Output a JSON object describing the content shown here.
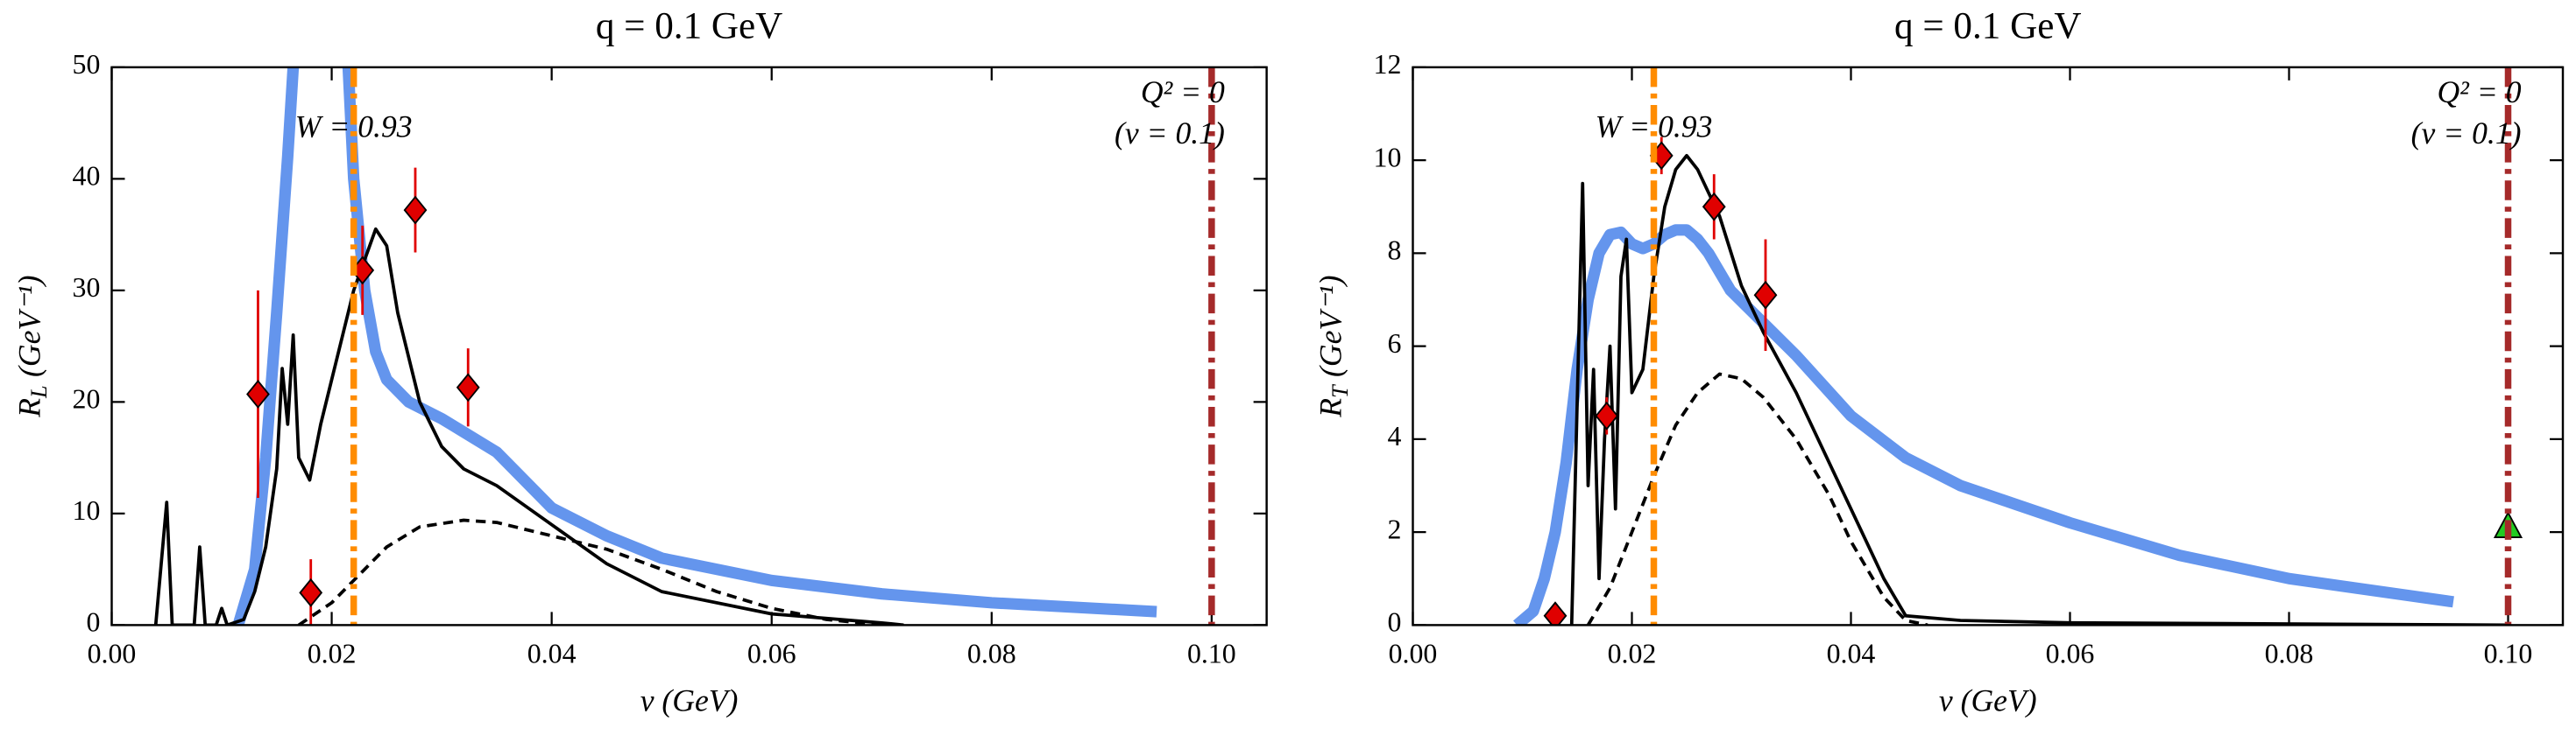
{
  "chart_data": [
    {
      "type": "line",
      "title": "q = 0.1 GeV",
      "xlabel": "ν (GeV)",
      "ylabel": {
        "symbol": "R",
        "subscript": "L",
        "unit": "(GeV⁻¹)"
      },
      "xlim": [
        0,
        0.105
      ],
      "ylim": [
        0,
        50
      ],
      "xticks": [
        {
          "value": 0,
          "label": "0.00"
        },
        {
          "value": 0.02,
          "label": "0.02"
        },
        {
          "value": 0.04,
          "label": "0.04"
        },
        {
          "value": 0.06,
          "label": "0.06"
        },
        {
          "value": 0.08,
          "label": "0.08"
        },
        {
          "value": 0.1,
          "label": "0.10"
        }
      ],
      "yticks": [
        0,
        10,
        20,
        30,
        40,
        50
      ],
      "vlines": [
        {
          "x": 0.022,
          "color": "#ff8c00",
          "texts": [
            "W = 0.93"
          ]
        },
        {
          "x": 0.1,
          "color": "#a52a2a",
          "texts": [
            "Q² = 0",
            "(ν = 0.1)"
          ]
        }
      ],
      "series": [
        {
          "style": "thick",
          "color": "#6495ed",
          "x": [
            0.0115,
            0.013,
            0.014,
            0.015,
            0.016,
            0.0165,
            0.019,
            0.0215,
            0.022,
            0.023,
            0.024,
            0.025,
            0.027,
            0.03,
            0.035,
            0.04,
            0.045,
            0.05,
            0.06,
            0.07,
            0.08,
            0.095
          ],
          "values": [
            0,
            5,
            15,
            28,
            42,
            50,
            70,
            50,
            40,
            30,
            24.5,
            22,
            20,
            18.5,
            15.5,
            10.5,
            8,
            6,
            4,
            2.8,
            2,
            1.2
          ]
        },
        {
          "style": "solid",
          "color": "#000000",
          "x": [
            0.004,
            0.005,
            0.0055,
            0.0075,
            0.008,
            0.0085,
            0.0095,
            0.01,
            0.0105,
            0.012,
            0.013,
            0.014,
            0.015,
            0.0155,
            0.016,
            0.0165,
            0.017,
            0.018,
            0.019,
            0.02,
            0.022,
            0.024,
            0.025,
            0.026,
            0.028,
            0.03,
            0.032,
            0.035,
            0.04,
            0.045,
            0.05,
            0.06,
            0.07,
            0.072
          ],
          "values": [
            0,
            11,
            0,
            0,
            7,
            0,
            0,
            1.5,
            0,
            0.5,
            3,
            7,
            14,
            23,
            18,
            26,
            15,
            13,
            18,
            22,
            30,
            35.5,
            34,
            28,
            20,
            16,
            14,
            12.5,
            9,
            5.5,
            3,
            1,
            0.2,
            0
          ]
        },
        {
          "style": "dashed",
          "color": "#000000",
          "x": [
            0.017,
            0.02,
            0.023,
            0.025,
            0.028,
            0.032,
            0.035,
            0.04,
            0.045,
            0.05,
            0.055,
            0.06,
            0.065,
            0.07
          ],
          "values": [
            0,
            2,
            5,
            7,
            8.8,
            9.4,
            9.2,
            8,
            6.8,
            5,
            3,
            1.5,
            0.5,
            0
          ]
        },
        {
          "style": "points",
          "marker": "diamond",
          "color": "#e00000",
          "x": [
            0.0133,
            0.0181,
            0.0228,
            0.0276,
            0.0324
          ],
          "values": [
            20.7,
            2.9,
            31.8,
            37.2,
            21.3
          ],
          "errors": [
            9.3,
            3,
            4,
            3.8,
            3.5
          ]
        }
      ]
    },
    {
      "type": "line",
      "title": "q = 0.1 GeV",
      "xlabel": "ν (GeV)",
      "ylabel": {
        "symbol": "R",
        "subscript": "T",
        "unit": "(GeV⁻¹)"
      },
      "xlim": [
        0,
        0.105
      ],
      "ylim": [
        0,
        12
      ],
      "xticks": [
        {
          "value": 0,
          "label": "0.00"
        },
        {
          "value": 0.02,
          "label": "0.02"
        },
        {
          "value": 0.04,
          "label": "0.04"
        },
        {
          "value": 0.06,
          "label": "0.06"
        },
        {
          "value": 0.08,
          "label": "0.08"
        },
        {
          "value": 0.1,
          "label": "0.10"
        }
      ],
      "yticks": [
        0,
        2,
        4,
        6,
        8,
        10,
        12
      ],
      "vlines": [
        {
          "x": 0.022,
          "color": "#ff8c00",
          "texts": [
            "W = 0.93"
          ]
        },
        {
          "x": 0.1,
          "color": "#a52a2a",
          "texts": [
            "Q² = 0",
            "(ν = 0.1)"
          ]
        }
      ],
      "series": [
        {
          "style": "thick",
          "color": "#6495ed",
          "x": [
            0.0095,
            0.011,
            0.012,
            0.013,
            0.014,
            0.015,
            0.016,
            0.017,
            0.018,
            0.019,
            0.02,
            0.021,
            0.022,
            0.023,
            0.024,
            0.025,
            0.026,
            0.027,
            0.029,
            0.032,
            0.035,
            0.04,
            0.045,
            0.05,
            0.055,
            0.06,
            0.07,
            0.08,
            0.095
          ],
          "values": [
            0,
            0.3,
            1,
            2,
            3.5,
            5.5,
            7,
            8,
            8.4,
            8.45,
            8.2,
            8.1,
            8.2,
            8.4,
            8.5,
            8.5,
            8.3,
            8,
            7.2,
            6.5,
            5.8,
            4.5,
            3.6,
            3,
            2.6,
            2.2,
            1.5,
            1,
            0.5
          ]
        },
        {
          "style": "solid",
          "color": "#000000",
          "x": [
            0.0145,
            0.0155,
            0.016,
            0.0165,
            0.017,
            0.0175,
            0.018,
            0.0185,
            0.019,
            0.0195,
            0.02,
            0.021,
            0.022,
            0.023,
            0.024,
            0.025,
            0.026,
            0.028,
            0.03,
            0.032,
            0.035,
            0.038,
            0.04,
            0.043,
            0.045,
            0.05,
            0.06,
            0.1
          ],
          "values": [
            0,
            9.5,
            3,
            5.5,
            1,
            4,
            6,
            2.5,
            7.5,
            8.3,
            5,
            5.5,
            7.5,
            9,
            9.8,
            10.1,
            9.8,
            8.8,
            7.3,
            6.3,
            5,
            3.5,
            2.5,
            1,
            0.2,
            0.1,
            0.05,
            0
          ]
        },
        {
          "style": "dashed",
          "color": "#000000",
          "x": [
            0.016,
            0.018,
            0.02,
            0.022,
            0.024,
            0.026,
            0.028,
            0.03,
            0.032,
            0.035,
            0.038,
            0.04,
            0.043,
            0.045,
            0.047
          ],
          "values": [
            0,
            0.8,
            2,
            3.2,
            4.3,
            5,
            5.4,
            5.3,
            4.9,
            4,
            2.8,
            1.8,
            0.6,
            0.1,
            0
          ]
        },
        {
          "style": "points",
          "marker": "diamond",
          "color": "#e00000",
          "x": [
            0.013,
            0.0177,
            0.0227,
            0.0275,
            0.0322
          ],
          "values": [
            0.2,
            4.5,
            10.1,
            9,
            7.1
          ],
          "errors": [
            0.2,
            0.4,
            0.4,
            0.7,
            1.2
          ]
        },
        {
          "style": "points",
          "marker": "triangle",
          "color": "#22cc22",
          "x": [
            0.1
          ],
          "values": [
            2.1
          ],
          "errors": [
            0
          ]
        }
      ]
    }
  ]
}
